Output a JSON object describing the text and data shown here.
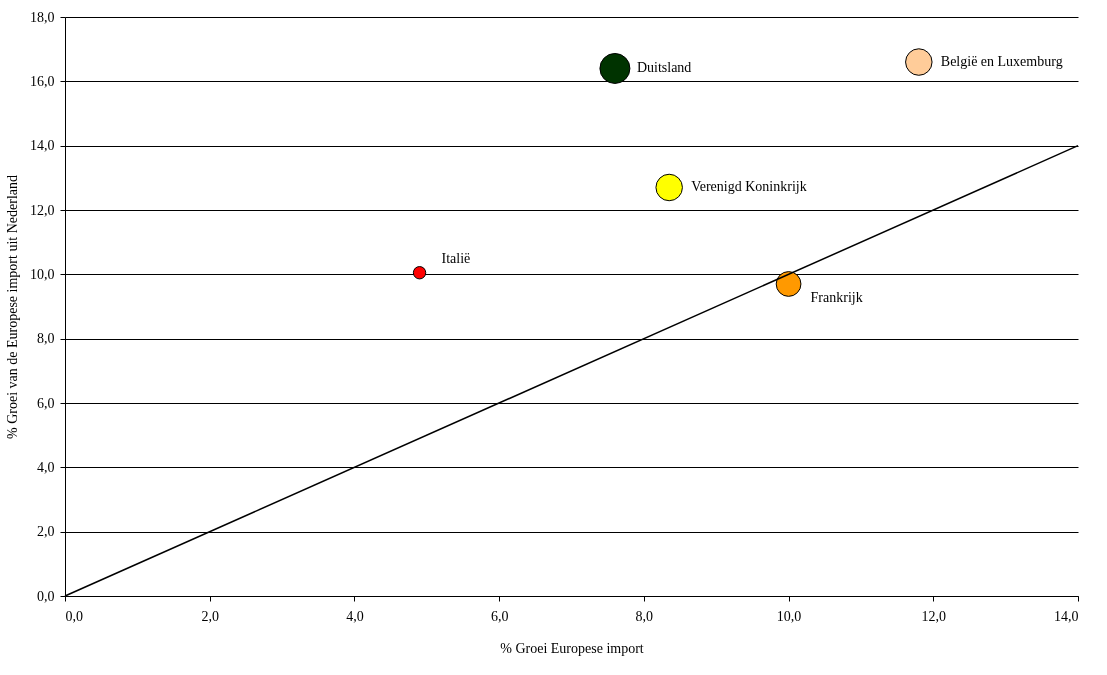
{
  "chart_data": {
    "type": "bubble",
    "xlabel": "% Groei Europese import",
    "ylabel": "% Groei van de Europese import uit Nederland",
    "xlim": [
      0,
      14
    ],
    "ylim": [
      0,
      18
    ],
    "xticks": [
      {
        "value": 0,
        "label": "0,0"
      },
      {
        "value": 2,
        "label": "2,0"
      },
      {
        "value": 4,
        "label": "4,0"
      },
      {
        "value": 6,
        "label": "6,0"
      },
      {
        "value": 8,
        "label": "8,0"
      },
      {
        "value": 10,
        "label": "10,0"
      },
      {
        "value": 12,
        "label": "12,0"
      },
      {
        "value": 14,
        "label": "14,0"
      }
    ],
    "yticks": [
      {
        "value": 0,
        "label": "0,0"
      },
      {
        "value": 2,
        "label": "2,0"
      },
      {
        "value": 4,
        "label": "4,0"
      },
      {
        "value": 6,
        "label": "6,0"
      },
      {
        "value": 8,
        "label": "8,0"
      },
      {
        "value": 10,
        "label": "10,0"
      },
      {
        "value": 12,
        "label": "12,0"
      },
      {
        "value": 14,
        "label": "14,0"
      },
      {
        "value": 16,
        "label": "16,0"
      },
      {
        "value": 18,
        "label": "18,0"
      }
    ],
    "grid": "y",
    "legend": false,
    "series": [
      {
        "name": "Duitsland",
        "color": "#003300",
        "x": [
          7.6
        ],
        "values": [
          16.4
        ],
        "sizes": [
          1
        ]
      },
      {
        "name": "België en Luxemburg",
        "color": "#ffcc99",
        "x": [
          11.8
        ],
        "values": [
          16.6
        ],
        "sizes": [
          0.78
        ]
      },
      {
        "name": "Verenigd Koninkrijk",
        "color": "#ffff00",
        "x": [
          8.35
        ],
        "values": [
          12.7
        ],
        "sizes": [
          0.78
        ]
      },
      {
        "name": "Italië",
        "color": "#ff0000",
        "x": [
          4.9
        ],
        "values": [
          10.05
        ],
        "sizes": [
          0.17
        ]
      },
      {
        "name": "Frankrijk",
        "color": "#ff9900",
        "x": [
          10.0
        ],
        "values": [
          9.7
        ],
        "sizes": [
          0.68
        ]
      },
      {
        "type": "line",
        "color": "#000000",
        "x": [
          0,
          14
        ],
        "values": [
          0,
          14
        ]
      }
    ]
  }
}
